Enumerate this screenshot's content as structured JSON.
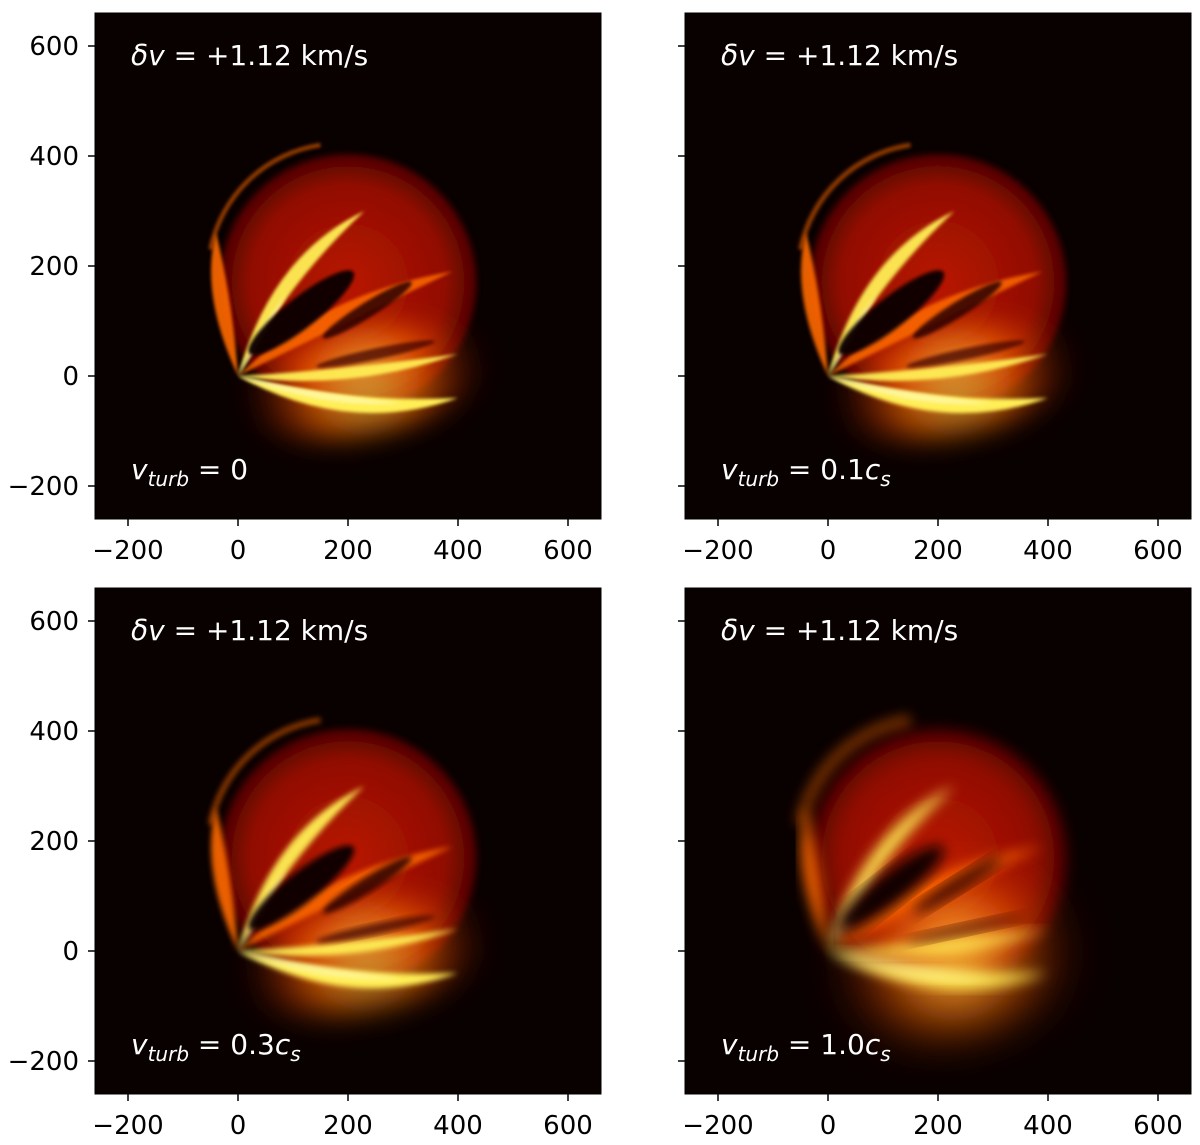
{
  "chart_data": [
    {
      "type": "heatmap",
      "annotation_top": {
        "prefix": "δ",
        "var": "v",
        "rest": " = +1.12 km/s"
      },
      "annotation_bottom": {
        "var": "v",
        "sub": "turb",
        "eq": " = ",
        "value": "0",
        "unit_var": "",
        "unit_sub": ""
      },
      "xlim": [
        -260,
        660
      ],
      "ylim": [
        -260,
        660
      ],
      "xticks": [
        -200,
        0,
        200,
        400,
        600
      ],
      "yticks": [
        -200,
        0,
        200,
        400,
        600
      ],
      "xtick_labels": [
        "−200",
        "0",
        "200",
        "400",
        "600"
      ],
      "ytick_labels": [
        "−200",
        "0",
        "200",
        "400",
        "600"
      ],
      "colormap": "hot",
      "show_ytick_labels": true
    },
    {
      "type": "heatmap",
      "annotation_top": {
        "prefix": "δ",
        "var": "v",
        "rest": " = +1.12 km/s"
      },
      "annotation_bottom": {
        "var": "v",
        "sub": "turb",
        "eq": " = ",
        "value": "0.1",
        "unit_var": "c",
        "unit_sub": "s"
      },
      "xlim": [
        -260,
        660
      ],
      "ylim": [
        -260,
        660
      ],
      "xticks": [
        -200,
        0,
        200,
        400,
        600
      ],
      "yticks": [
        -200,
        0,
        200,
        400,
        600
      ],
      "xtick_labels": [
        "−200",
        "0",
        "200",
        "400",
        "600"
      ],
      "ytick_labels": [],
      "colormap": "hot",
      "show_ytick_labels": false
    },
    {
      "type": "heatmap",
      "annotation_top": {
        "prefix": "δ",
        "var": "v",
        "rest": " = +1.12 km/s"
      },
      "annotation_bottom": {
        "var": "v",
        "sub": "turb",
        "eq": " = ",
        "value": "0.3",
        "unit_var": "c",
        "unit_sub": "s"
      },
      "xlim": [
        -260,
        660
      ],
      "ylim": [
        -260,
        660
      ],
      "xticks": [
        -200,
        0,
        200,
        400,
        600
      ],
      "yticks": [
        -200,
        0,
        200,
        400,
        600
      ],
      "xtick_labels": [
        "−200",
        "0",
        "200",
        "400",
        "600"
      ],
      "ytick_labels": [
        "−200",
        "0",
        "200",
        "400",
        "600"
      ],
      "colormap": "hot",
      "show_ytick_labels": true
    },
    {
      "type": "heatmap",
      "annotation_top": {
        "prefix": "δ",
        "var": "v",
        "rest": " = +1.12 km/s"
      },
      "annotation_bottom": {
        "var": "v",
        "sub": "turb",
        "eq": " = ",
        "value": "1.0",
        "unit_var": "c",
        "unit_sub": "s"
      },
      "xlim": [
        -260,
        660
      ],
      "ylim": [
        -260,
        660
      ],
      "xticks": [
        -200,
        0,
        200,
        400,
        600
      ],
      "yticks": [
        -200,
        0,
        200,
        400,
        600
      ],
      "xtick_labels": [
        "−200",
        "0",
        "200",
        "400",
        "600"
      ],
      "ytick_labels": [],
      "colormap": "hot",
      "show_ytick_labels": false
    }
  ],
  "colors": {
    "background": "#090000",
    "hot_dark": "#3a0000",
    "hot_red": "#c21800",
    "hot_orange": "#ff6a00",
    "hot_yellow": "#ffee55",
    "text_on_plot": "#ffffff"
  }
}
